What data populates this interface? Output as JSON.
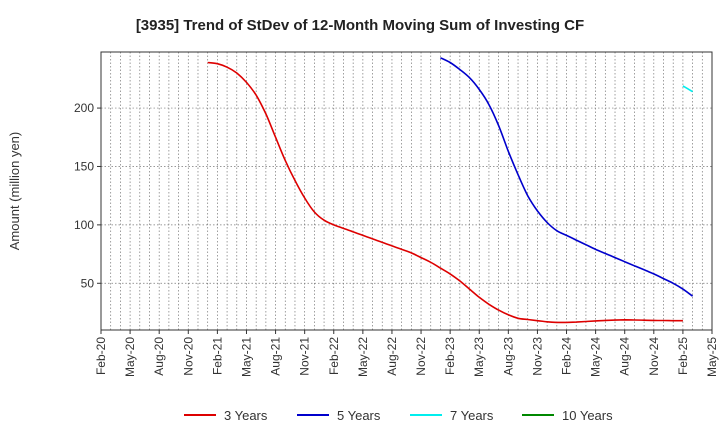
{
  "chart_data": {
    "type": "line",
    "title": "[3935]  Trend of StDev of 12-Month Moving Sum of Investing CF",
    "xlabel": "",
    "ylabel": "Amount (million yen)",
    "x_ticks": [
      "Feb-20",
      "May-20",
      "Aug-20",
      "Nov-20",
      "Feb-21",
      "May-21",
      "Aug-21",
      "Nov-21",
      "Feb-22",
      "May-22",
      "Aug-22",
      "Nov-22",
      "Feb-23",
      "May-23",
      "Aug-23",
      "Nov-23",
      "Feb-24",
      "May-24",
      "Aug-24",
      "Nov-24",
      "Feb-25",
      "May-25"
    ],
    "y_ticks": [
      50,
      100,
      150,
      200
    ],
    "ylim": [
      10,
      248
    ],
    "grid": true,
    "legend_position": "bottom",
    "series": [
      {
        "name": "3 Years",
        "color": "#dd0000",
        "points": [
          [
            "Jan-21",
            239
          ],
          [
            "Feb-21",
            238
          ],
          [
            "Mar-21",
            235
          ],
          [
            "Apr-21",
            230
          ],
          [
            "May-21",
            222
          ],
          [
            "Jun-21",
            211
          ],
          [
            "Jul-21",
            195
          ],
          [
            "Aug-21",
            175
          ],
          [
            "Sep-21",
            155
          ],
          [
            "Oct-21",
            138
          ],
          [
            "Nov-21",
            123
          ],
          [
            "Dec-21",
            111
          ],
          [
            "Jan-22",
            104
          ],
          [
            "Feb-22",
            100
          ],
          [
            "Mar-22",
            97
          ],
          [
            "Apr-22",
            94
          ],
          [
            "May-22",
            91
          ],
          [
            "Jun-22",
            88
          ],
          [
            "Jul-22",
            85
          ],
          [
            "Aug-22",
            82
          ],
          [
            "Sep-22",
            79
          ],
          [
            "Oct-22",
            76
          ],
          [
            "Nov-22",
            72
          ],
          [
            "Dec-22",
            68
          ],
          [
            "Jan-23",
            63
          ],
          [
            "Feb-23",
            58
          ],
          [
            "Mar-23",
            52
          ],
          [
            "Apr-23",
            45
          ],
          [
            "May-23",
            38
          ],
          [
            "Jun-23",
            32
          ],
          [
            "Jul-23",
            27
          ],
          [
            "Aug-23",
            23
          ],
          [
            "Sep-23",
            20
          ],
          [
            "Oct-23",
            19
          ],
          [
            "Nov-23",
            18
          ],
          [
            "Dec-23",
            17
          ],
          [
            "Jan-24",
            16.5
          ],
          [
            "Feb-24",
            16.5
          ],
          [
            "Mar-24",
            16.8
          ],
          [
            "Apr-24",
            17.3
          ],
          [
            "May-24",
            17.8
          ],
          [
            "Jun-24",
            18.2
          ],
          [
            "Jul-24",
            18.5
          ],
          [
            "Aug-24",
            18.7
          ],
          [
            "Sep-24",
            18.6
          ],
          [
            "Oct-24",
            18.4
          ],
          [
            "Nov-24",
            18.2
          ],
          [
            "Dec-24",
            18.1
          ],
          [
            "Jan-25",
            18
          ],
          [
            "Feb-25",
            18
          ]
        ]
      },
      {
        "name": "5 Years",
        "color": "#0000cc",
        "points": [
          [
            "Jan-23",
            243
          ],
          [
            "Feb-23",
            239
          ],
          [
            "Mar-23",
            233
          ],
          [
            "Apr-23",
            226
          ],
          [
            "May-23",
            216
          ],
          [
            "Jun-23",
            203
          ],
          [
            "Jul-23",
            185
          ],
          [
            "Aug-23",
            163
          ],
          [
            "Sep-23",
            143
          ],
          [
            "Oct-23",
            125
          ],
          [
            "Nov-23",
            112
          ],
          [
            "Dec-23",
            102
          ],
          [
            "Jan-24",
            95
          ],
          [
            "Feb-24",
            91
          ],
          [
            "Mar-24",
            87
          ],
          [
            "Apr-24",
            83
          ],
          [
            "May-24",
            79
          ],
          [
            "Jun-24",
            75.5
          ],
          [
            "Jul-24",
            72
          ],
          [
            "Aug-24",
            68.5
          ],
          [
            "Sep-24",
            65
          ],
          [
            "Oct-24",
            61.5
          ],
          [
            "Nov-24",
            58
          ],
          [
            "Dec-24",
            54
          ],
          [
            "Jan-25",
            50
          ],
          [
            "Feb-25",
            45
          ],
          [
            "Mar-25",
            39
          ]
        ]
      },
      {
        "name": "7 Years",
        "color": "#00eeee",
        "points": [
          [
            "Feb-25",
            219
          ],
          [
            "Mar-25",
            214
          ]
        ]
      },
      {
        "name": "10 Years",
        "color": "#008800",
        "points": []
      }
    ]
  }
}
